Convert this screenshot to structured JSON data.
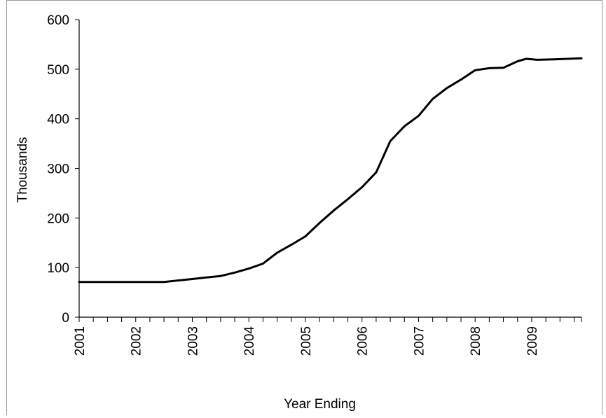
{
  "chart_data": {
    "type": "line",
    "title": "",
    "xlabel": "Year Ending",
    "ylabel": "Thousands",
    "ylim": [
      0,
      600
    ],
    "xlim": [
      2001,
      2009.88
    ],
    "grid": false,
    "legend": "none",
    "y_ticks": [
      0,
      100,
      200,
      300,
      400,
      500,
      600
    ],
    "x_ticks": [
      2001,
      2002,
      2003,
      2004,
      2005,
      2006,
      2007,
      2008,
      2009
    ],
    "x_tick_labels": [
      "2001",
      "2002",
      "2003",
      "2004",
      "2005",
      "2006",
      "2007",
      "2008",
      "2009"
    ],
    "y_tick_labels": [
      "0",
      "100",
      "200",
      "300",
      "400",
      "500",
      "600"
    ],
    "line_color": "#000000",
    "series": [
      {
        "x": [
          2001.0,
          2001.5,
          2002.0,
          2002.5,
          2003.0,
          2003.25,
          2003.5,
          2003.75,
          2004.0,
          2004.25,
          2004.5,
          2004.75,
          2005.0,
          2005.25,
          2005.5,
          2005.75,
          2006.0,
          2006.25,
          2006.5,
          2006.75,
          2007.0,
          2007.25,
          2007.5,
          2007.75,
          2008.0,
          2008.25,
          2008.5,
          2008.75,
          2008.9,
          2009.1,
          2009.4,
          2009.88
        ],
        "y": [
          71,
          71,
          71,
          71,
          77,
          80,
          83,
          90,
          98,
          108,
          130,
          146,
          163,
          190,
          215,
          238,
          262,
          292,
          355,
          385,
          406,
          440,
          462,
          479,
          498,
          502,
          503,
          516,
          521,
          519,
          520,
          522
        ]
      }
    ]
  }
}
